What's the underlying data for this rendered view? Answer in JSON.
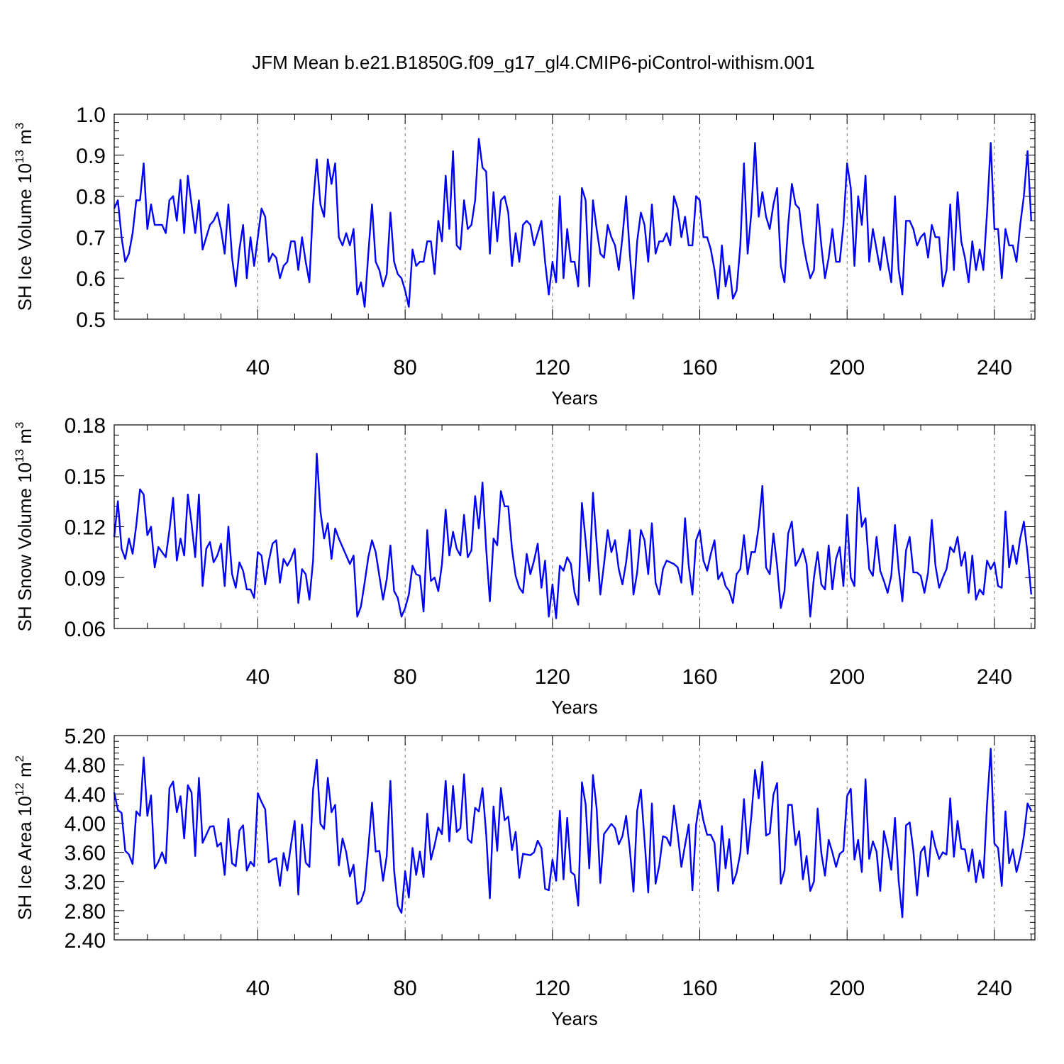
{
  "title": "JFM Mean b.e21.B1850G.f09_g17_gl4.CMIP6-piControl-withism.001",
  "colors": {
    "series": "#0000ff",
    "grid": "#777777"
  },
  "chart_data": [
    {
      "type": "line",
      "ylabel_main": "SH Ice Volume 10",
      "ylabel_exp": "13",
      "ylabel_unit": "m",
      "ylabel_unit_exp": "3",
      "xlabel": "Years",
      "xlim": [
        1,
        251
      ],
      "ylim": [
        0.5,
        1.0
      ],
      "xticks": [
        40,
        80,
        120,
        160,
        200,
        240
      ],
      "xtick_labels": [
        "40",
        "80",
        "120",
        "160",
        "200",
        "240"
      ],
      "yticks": [
        0.5,
        0.6,
        0.7,
        0.8,
        0.9,
        1.0
      ],
      "ytick_labels": [
        "0.5",
        "0.6",
        "0.7",
        "0.8",
        "0.9",
        "1.0"
      ],
      "grid": "vertical dashed at x ticks",
      "x_start": 1,
      "values": [
        0.77,
        0.79,
        0.7,
        0.64,
        0.66,
        0.71,
        0.79,
        0.79,
        0.88,
        0.72,
        0.78,
        0.73,
        0.73,
        0.73,
        0.71,
        0.79,
        0.8,
        0.74,
        0.84,
        0.71,
        0.85,
        0.78,
        0.71,
        0.79,
        0.67,
        0.7,
        0.73,
        0.74,
        0.76,
        0.72,
        0.66,
        0.78,
        0.65,
        0.58,
        0.67,
        0.73,
        0.6,
        0.7,
        0.63,
        0.7,
        0.77,
        0.75,
        0.64,
        0.66,
        0.65,
        0.6,
        0.63,
        0.64,
        0.69,
        0.69,
        0.62,
        0.7,
        0.64,
        0.59,
        0.78,
        0.89,
        0.78,
        0.75,
        0.89,
        0.83,
        0.88,
        0.7,
        0.68,
        0.71,
        0.68,
        0.72,
        0.56,
        0.59,
        0.53,
        0.66,
        0.78,
        0.64,
        0.62,
        0.58,
        0.61,
        0.76,
        0.64,
        0.61,
        0.6,
        0.57,
        0.53,
        0.67,
        0.63,
        0.64,
        0.64,
        0.69,
        0.69,
        0.61,
        0.74,
        0.69,
        0.85,
        0.72,
        0.91,
        0.68,
        0.67,
        0.79,
        0.72,
        0.73,
        0.79,
        0.94,
        0.87,
        0.86,
        0.66,
        0.81,
        0.69,
        0.79,
        0.8,
        0.76,
        0.63,
        0.71,
        0.64,
        0.73,
        0.74,
        0.73,
        0.68,
        0.71,
        0.74,
        0.64,
        0.56,
        0.64,
        0.59,
        0.8,
        0.6,
        0.72,
        0.64,
        0.64,
        0.58,
        0.82,
        0.79,
        0.58,
        0.79,
        0.72,
        0.66,
        0.65,
        0.73,
        0.7,
        0.68,
        0.62,
        0.7,
        0.8,
        0.66,
        0.55,
        0.69,
        0.76,
        0.73,
        0.64,
        0.78,
        0.66,
        0.69,
        0.69,
        0.71,
        0.68,
        0.8,
        0.77,
        0.7,
        0.75,
        0.68,
        0.68,
        0.8,
        0.79,
        0.7,
        0.7,
        0.67,
        0.62,
        0.55,
        0.68,
        0.58,
        0.63,
        0.55,
        0.57,
        0.68,
        0.88,
        0.66,
        0.76,
        0.93,
        0.75,
        0.81,
        0.75,
        0.72,
        0.78,
        0.82,
        0.63,
        0.59,
        0.73,
        0.83,
        0.78,
        0.77,
        0.69,
        0.64,
        0.6,
        0.62,
        0.78,
        0.68,
        0.6,
        0.65,
        0.72,
        0.64,
        0.64,
        0.73,
        0.88,
        0.82,
        0.63,
        0.8,
        0.73,
        0.85,
        0.64,
        0.72,
        0.67,
        0.62,
        0.7,
        0.64,
        0.59,
        0.8,
        0.62,
        0.56,
        0.74,
        0.74,
        0.72,
        0.68,
        0.7,
        0.71,
        0.65,
        0.73,
        0.7,
        0.7,
        0.58,
        0.62,
        0.78,
        0.62,
        0.81,
        0.69,
        0.65,
        0.59,
        0.69,
        0.62,
        0.67,
        0.62,
        0.76,
        0.93,
        0.72,
        0.72,
        0.6,
        0.72,
        0.68,
        0.68,
        0.64,
        0.73,
        0.8,
        0.91,
        0.74
      ]
    },
    {
      "type": "line",
      "ylabel_main": "SH Snow Volume 10",
      "ylabel_exp": "13",
      "ylabel_unit": "m",
      "ylabel_unit_exp": "3",
      "xlabel": "Years",
      "xlim": [
        1,
        251
      ],
      "ylim": [
        0.06,
        0.18
      ],
      "xticks": [
        40,
        80,
        120,
        160,
        200,
        240
      ],
      "xtick_labels": [
        "40",
        "80",
        "120",
        "160",
        "200",
        "240"
      ],
      "yticks": [
        0.06,
        0.09,
        0.12,
        0.15,
        0.18
      ],
      "ytick_labels": [
        "0.06",
        "0.09",
        "0.12",
        "0.15",
        "0.18"
      ],
      "grid": "vertical dashed at x ticks",
      "x_start": 1,
      "values": [
        0.114,
        0.135,
        0.107,
        0.101,
        0.113,
        0.104,
        0.121,
        0.142,
        0.139,
        0.115,
        0.12,
        0.096,
        0.108,
        0.105,
        0.102,
        0.118,
        0.137,
        0.1,
        0.113,
        0.103,
        0.139,
        0.122,
        0.102,
        0.139,
        0.085,
        0.107,
        0.111,
        0.099,
        0.103,
        0.11,
        0.085,
        0.12,
        0.092,
        0.084,
        0.099,
        0.094,
        0.083,
        0.083,
        0.078,
        0.105,
        0.103,
        0.086,
        0.1,
        0.11,
        0.112,
        0.087,
        0.101,
        0.097,
        0.101,
        0.107,
        0.075,
        0.095,
        0.092,
        0.077,
        0.1,
        0.163,
        0.129,
        0.113,
        0.122,
        0.101,
        0.119,
        0.113,
        0.108,
        0.103,
        0.098,
        0.103,
        0.067,
        0.073,
        0.087,
        0.102,
        0.112,
        0.105,
        0.091,
        0.077,
        0.089,
        0.109,
        0.082,
        0.078,
        0.067,
        0.072,
        0.08,
        0.097,
        0.092,
        0.091,
        0.07,
        0.118,
        0.088,
        0.09,
        0.082,
        0.098,
        0.13,
        0.103,
        0.117,
        0.107,
        0.103,
        0.127,
        0.102,
        0.106,
        0.138,
        0.119,
        0.146,
        0.107,
        0.076,
        0.113,
        0.109,
        0.141,
        0.132,
        0.132,
        0.107,
        0.091,
        0.084,
        0.081,
        0.104,
        0.092,
        0.1,
        0.11,
        0.084,
        0.1,
        0.067,
        0.086,
        0.066,
        0.097,
        0.094,
        0.102,
        0.098,
        0.081,
        0.074,
        0.134,
        0.112,
        0.088,
        0.14,
        0.11,
        0.08,
        0.098,
        0.118,
        0.105,
        0.112,
        0.095,
        0.086,
        0.099,
        0.118,
        0.08,
        0.093,
        0.118,
        0.112,
        0.092,
        0.122,
        0.087,
        0.08,
        0.095,
        0.1,
        0.099,
        0.098,
        0.096,
        0.087,
        0.125,
        0.097,
        0.08,
        0.112,
        0.118,
        0.1,
        0.094,
        0.104,
        0.112,
        0.089,
        0.093,
        0.085,
        0.082,
        0.075,
        0.092,
        0.095,
        0.115,
        0.092,
        0.105,
        0.105,
        0.12,
        0.144,
        0.096,
        0.092,
        0.116,
        0.097,
        0.072,
        0.082,
        0.116,
        0.123,
        0.097,
        0.101,
        0.107,
        0.098,
        0.067,
        0.09,
        0.105,
        0.086,
        0.083,
        0.109,
        0.083,
        0.101,
        0.108,
        0.085,
        0.127,
        0.09,
        0.085,
        0.143,
        0.12,
        0.125,
        0.095,
        0.091,
        0.114,
        0.094,
        0.088,
        0.081,
        0.091,
        0.121,
        0.095,
        0.076,
        0.106,
        0.114,
        0.093,
        0.093,
        0.091,
        0.081,
        0.093,
        0.124,
        0.097,
        0.084,
        0.09,
        0.095,
        0.108,
        0.105,
        0.114,
        0.097,
        0.105,
        0.081,
        0.103,
        0.077,
        0.083,
        0.08,
        0.1,
        0.095,
        0.099,
        0.085,
        0.084,
        0.129,
        0.096,
        0.109,
        0.098,
        0.113,
        0.123,
        0.104,
        0.08
      ]
    },
    {
      "type": "line",
      "ylabel_main": "SH Ice Area 10",
      "ylabel_exp": "12",
      "ylabel_unit": "m",
      "ylabel_unit_exp": "2",
      "xlabel": "Years",
      "xlim": [
        1,
        251
      ],
      "ylim": [
        2.4,
        5.2
      ],
      "xticks": [
        40,
        80,
        120,
        160,
        200,
        240
      ],
      "xtick_labels": [
        "40",
        "80",
        "120",
        "160",
        "200",
        "240"
      ],
      "yticks": [
        2.4,
        2.8,
        3.2,
        3.6,
        4.0,
        4.4,
        4.8,
        5.2
      ],
      "ytick_labels": [
        "2.40",
        "2.80",
        "3.20",
        "3.60",
        "4.00",
        "4.40",
        "4.80",
        "5.20"
      ],
      "grid": "vertical dashed at x ticks",
      "x_start": 1,
      "values": [
        4.42,
        4.18,
        4.14,
        3.62,
        3.57,
        3.44,
        4.16,
        4.1,
        4.9,
        4.1,
        4.38,
        3.38,
        3.47,
        3.6,
        3.45,
        4.48,
        4.57,
        4.15,
        4.37,
        3.79,
        4.52,
        4.42,
        3.55,
        4.62,
        3.73,
        3.84,
        3.95,
        3.96,
        3.68,
        3.73,
        3.29,
        4.06,
        3.45,
        3.41,
        3.9,
        3.97,
        3.35,
        3.47,
        3.41,
        4.41,
        4.29,
        4.19,
        3.46,
        3.5,
        3.52,
        3.14,
        3.59,
        3.35,
        3.7,
        4.03,
        3.02,
        3.98,
        3.46,
        3.4,
        4.46,
        4.87,
        3.99,
        3.92,
        4.62,
        4.15,
        4.25,
        3.42,
        3.79,
        3.6,
        3.27,
        3.43,
        2.89,
        2.93,
        3.08,
        3.66,
        4.28,
        3.61,
        3.62,
        3.21,
        3.55,
        4.58,
        3.35,
        2.87,
        2.77,
        3.34,
        2.98,
        3.66,
        3.29,
        3.61,
        3.26,
        4.13,
        3.5,
        3.7,
        3.94,
        3.85,
        4.58,
        3.75,
        4.51,
        3.88,
        3.93,
        4.67,
        3.78,
        3.73,
        4.21,
        4.16,
        4.48,
        3.85,
        2.97,
        4.23,
        3.62,
        4.48,
        4.04,
        4.09,
        3.63,
        3.88,
        3.25,
        3.58,
        3.57,
        3.56,
        3.6,
        3.76,
        3.66,
        3.1,
        3.08,
        3.5,
        3.21,
        4.17,
        3.23,
        4.07,
        3.33,
        3.29,
        2.87,
        4.56,
        4.26,
        3.38,
        4.66,
        4.2,
        3.18,
        3.85,
        3.92,
        3.99,
        3.93,
        3.71,
        3.82,
        4.1,
        3.64,
        3.06,
        4.17,
        4.46,
        3.77,
        3.05,
        4.27,
        3.17,
        3.42,
        3.82,
        3.8,
        3.69,
        4.24,
        3.85,
        3.4,
        3.7,
        3.98,
        3.08,
        3.98,
        4.31,
        4.03,
        3.84,
        3.84,
        3.73,
        3.07,
        3.96,
        3.38,
        3.78,
        3.17,
        3.32,
        3.59,
        4.33,
        3.58,
        4.09,
        4.73,
        4.34,
        4.84,
        3.83,
        3.86,
        4.39,
        4.55,
        3.17,
        3.35,
        4.25,
        4.25,
        3.7,
        3.89,
        3.23,
        3.55,
        3.07,
        3.2,
        4.2,
        3.59,
        3.28,
        3.77,
        3.6,
        3.4,
        3.58,
        3.62,
        4.37,
        4.47,
        3.5,
        3.77,
        3.33,
        4.6,
        3.51,
        3.75,
        3.61,
        3.07,
        3.89,
        3.66,
        3.36,
        4.07,
        3.21,
        2.71,
        3.97,
        4.01,
        3.62,
        3.01,
        3.6,
        3.68,
        3.27,
        3.89,
        3.67,
        3.51,
        3.6,
        3.57,
        4.34,
        3.54,
        4.03,
        3.65,
        3.64,
        3.34,
        3.64,
        3.19,
        3.49,
        3.25,
        4.25,
        5.02,
        3.72,
        3.66,
        3.14,
        4.16,
        3.45,
        3.64,
        3.33,
        3.53,
        3.82,
        4.27,
        4.17
      ]
    }
  ]
}
